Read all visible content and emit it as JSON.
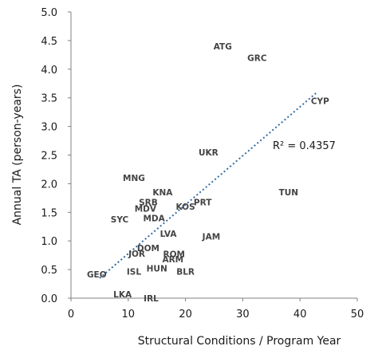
{
  "chart_data": {
    "type": "scatter",
    "xlabel": "Structural Conditions  /  Program Year",
    "ylabel": "Annual TA (person-years)",
    "xlim": [
      0,
      50
    ],
    "ylim": [
      0,
      5
    ],
    "xticks": [
      "0",
      "10",
      "20",
      "30",
      "40",
      "50"
    ],
    "yticks": [
      "0.0",
      "0.5",
      "1.0",
      "1.5",
      "2.0",
      "2.5",
      "3.0",
      "3.5",
      "4.0",
      "4.5",
      "5.0"
    ],
    "grid": false,
    "points": [
      {
        "label": "ATG",
        "x": 26.5,
        "y": 4.4
      },
      {
        "label": "GRC",
        "x": 32.5,
        "y": 4.2
      },
      {
        "label": "CYP",
        "x": 43.5,
        "y": 3.45
      },
      {
        "label": "UKR",
        "x": 24.0,
        "y": 2.55
      },
      {
        "label": "MNG",
        "x": 11.0,
        "y": 2.1
      },
      {
        "label": "KNA",
        "x": 16.0,
        "y": 1.85
      },
      {
        "label": "TUN",
        "x": 38.0,
        "y": 1.85
      },
      {
        "label": "SRB",
        "x": 13.5,
        "y": 1.68
      },
      {
        "label": "PRT",
        "x": 23.0,
        "y": 1.68
      },
      {
        "label": "MDV",
        "x": 13.0,
        "y": 1.57
      },
      {
        "label": "KOS",
        "x": 20.0,
        "y": 1.6
      },
      {
        "label": "SYC",
        "x": 8.5,
        "y": 1.38
      },
      {
        "label": "MDA",
        "x": 14.5,
        "y": 1.4
      },
      {
        "label": "JAM",
        "x": 24.5,
        "y": 1.08
      },
      {
        "label": "LVA",
        "x": 17.0,
        "y": 1.13
      },
      {
        "label": "DOM",
        "x": 13.5,
        "y": 0.88
      },
      {
        "label": "JOR",
        "x": 11.5,
        "y": 0.78
      },
      {
        "label": "ROM",
        "x": 18.0,
        "y": 0.77
      },
      {
        "label": "ARM",
        "x": 17.8,
        "y": 0.68
      },
      {
        "label": "HUN",
        "x": 15.0,
        "y": 0.52
      },
      {
        "label": "ISL",
        "x": 11.0,
        "y": 0.47
      },
      {
        "label": "BLR",
        "x": 20.0,
        "y": 0.47
      },
      {
        "label": "GEO",
        "x": 4.5,
        "y": 0.42
      },
      {
        "label": "LKA",
        "x": 9.0,
        "y": 0.07
      },
      {
        "label": "IRL",
        "x": 14.0,
        "y": 0.0
      }
    ],
    "trendline": {
      "style": "dotted",
      "color": "#2e6aa3",
      "x": [
        5,
        43
      ],
      "y": [
        0.35,
        3.6
      ],
      "annotation": "R² = 0.4357"
    },
    "colors": {
      "axis": "#808080",
      "label": "#444444",
      "trend": "#2e6aa3"
    }
  }
}
